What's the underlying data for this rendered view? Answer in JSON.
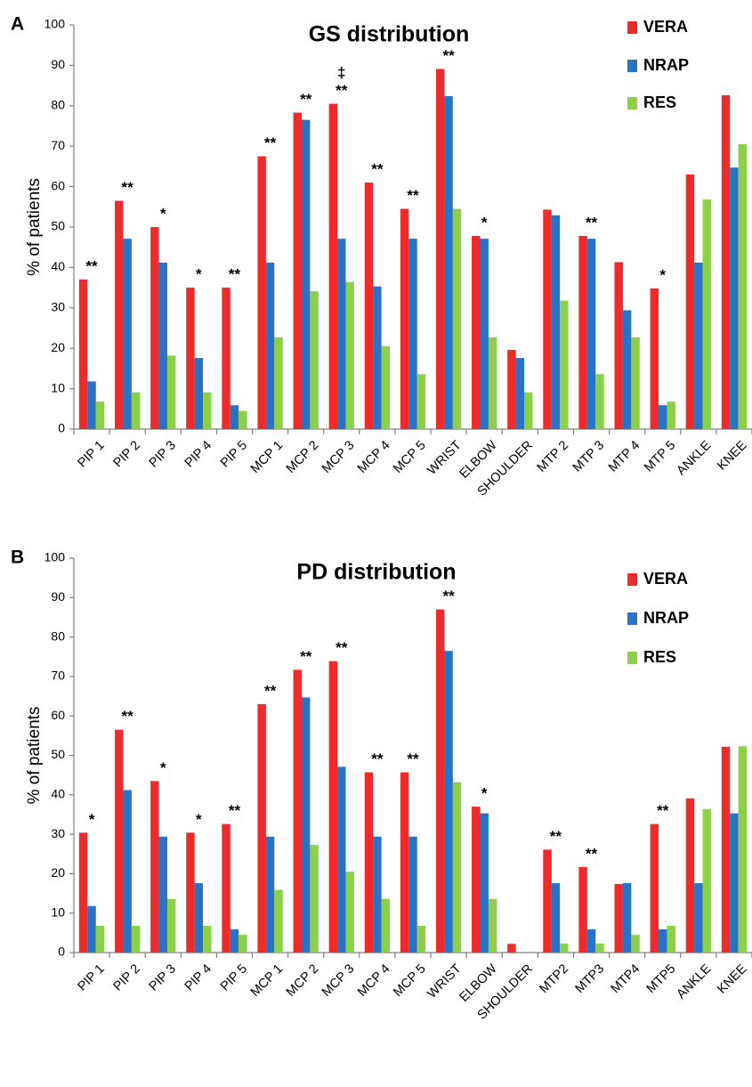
{
  "chart_data": [
    {
      "type": "bar",
      "panel": "A",
      "title": "GS distribution",
      "ylabel": "% of patients",
      "xlabel": "",
      "ylim": [
        0,
        100
      ],
      "yticks": [
        "0",
        "10",
        "20",
        "30",
        "40",
        "50",
        "60",
        "70",
        "80",
        "90",
        "100"
      ],
      "legend_position": "top-right",
      "colors": {
        "VERA": "#ee2a2a",
        "NRAP": "#2a72c4",
        "RES": "#8cd04a"
      },
      "categories": [
        "PIP 1",
        "PIP 2",
        "PIP 3",
        "PIP 4",
        "PIP 5",
        "MCP 1",
        "MCP 2",
        "MCP 3",
        "MCP 4",
        "MCP 5",
        "WRIST",
        "ELBOW",
        "SHOULDER",
        "MTP 2",
        "MTP 3",
        "MTP 4",
        "MTP 5",
        "ANKLE",
        "KNEE"
      ],
      "series": [
        {
          "name": "VERA",
          "values": [
            37,
            56.5,
            50,
            35,
            35,
            67.5,
            78.3,
            80.5,
            61,
            54.5,
            89.1,
            47.8,
            19.6,
            54.3,
            47.8,
            41.3,
            34.8,
            63,
            82.6
          ]
        },
        {
          "name": "NRAP",
          "values": [
            11.8,
            47.1,
            41.2,
            17.6,
            5.9,
            41.2,
            76.5,
            47.1,
            35.3,
            47.1,
            82.4,
            47.1,
            17.6,
            52.9,
            47.1,
            29.4,
            5.9,
            41.2,
            64.7
          ]
        },
        {
          "name": "RES",
          "values": [
            6.8,
            9.1,
            18.2,
            9.1,
            4.5,
            22.7,
            34.1,
            36.4,
            20.5,
            13.6,
            54.5,
            22.7,
            9.1,
            31.8,
            13.6,
            22.7,
            6.8,
            56.8,
            70.5
          ]
        }
      ],
      "annotations": [
        "**",
        "**",
        "*",
        "*",
        "**",
        "**",
        "**",
        "**",
        "**",
        "**",
        "**",
        "*",
        "",
        "",
        "**",
        "",
        "*",
        "",
        ""
      ],
      "extra_annotation": {
        "category": "MCP 3",
        "text": "‡"
      }
    },
    {
      "type": "bar",
      "panel": "B",
      "title": "PD  distribution",
      "ylabel": "% of patients",
      "xlabel": "",
      "ylim": [
        0,
        100
      ],
      "yticks": [
        "0",
        "10",
        "20",
        "30",
        "40",
        "50",
        "60",
        "70",
        "80",
        "90",
        "100"
      ],
      "legend_position": "top-right",
      "colors": {
        "VERA": "#ee2a2a",
        "NRAP": "#2a72c4",
        "RES": "#8cd04a"
      },
      "categories": [
        "PIP 1",
        "PIP 2",
        "PIP 3",
        "PIP 4",
        "PIP 5",
        "MCP 1",
        "MCP 2",
        "MCP 3",
        "MCP 4",
        "MCP 5",
        "WRIST",
        "ELBOW",
        "SHOULDER",
        "MTP2",
        "MTP3",
        "MTP4",
        "MTP5",
        "ANKLE",
        "KNEE"
      ],
      "series": [
        {
          "name": "VERA",
          "values": [
            30.4,
            56.5,
            43.5,
            30.4,
            32.6,
            63,
            71.7,
            73.9,
            45.7,
            45.7,
            87,
            37,
            2.2,
            26.1,
            21.7,
            17.4,
            32.6,
            39.1,
            52.2
          ]
        },
        {
          "name": "NRAP",
          "values": [
            11.8,
            41.2,
            29.4,
            17.6,
            5.9,
            29.4,
            64.7,
            47.1,
            29.4,
            29.4,
            76.5,
            35.3,
            0,
            17.6,
            5.9,
            17.6,
            5.9,
            17.6,
            35.3
          ]
        },
        {
          "name": "RES",
          "values": [
            6.8,
            6.8,
            13.6,
            6.8,
            4.5,
            15.9,
            27.3,
            20.5,
            13.6,
            6.8,
            43.2,
            13.6,
            0,
            2.3,
            2.3,
            4.5,
            6.8,
            36.4,
            52.3
          ]
        }
      ],
      "annotations": [
        "*",
        "**",
        "*",
        "*",
        "**",
        "**",
        "**",
        "**",
        "**",
        "**",
        "**",
        "*",
        "",
        "**",
        "**",
        "",
        "**",
        "",
        ""
      ]
    }
  ]
}
